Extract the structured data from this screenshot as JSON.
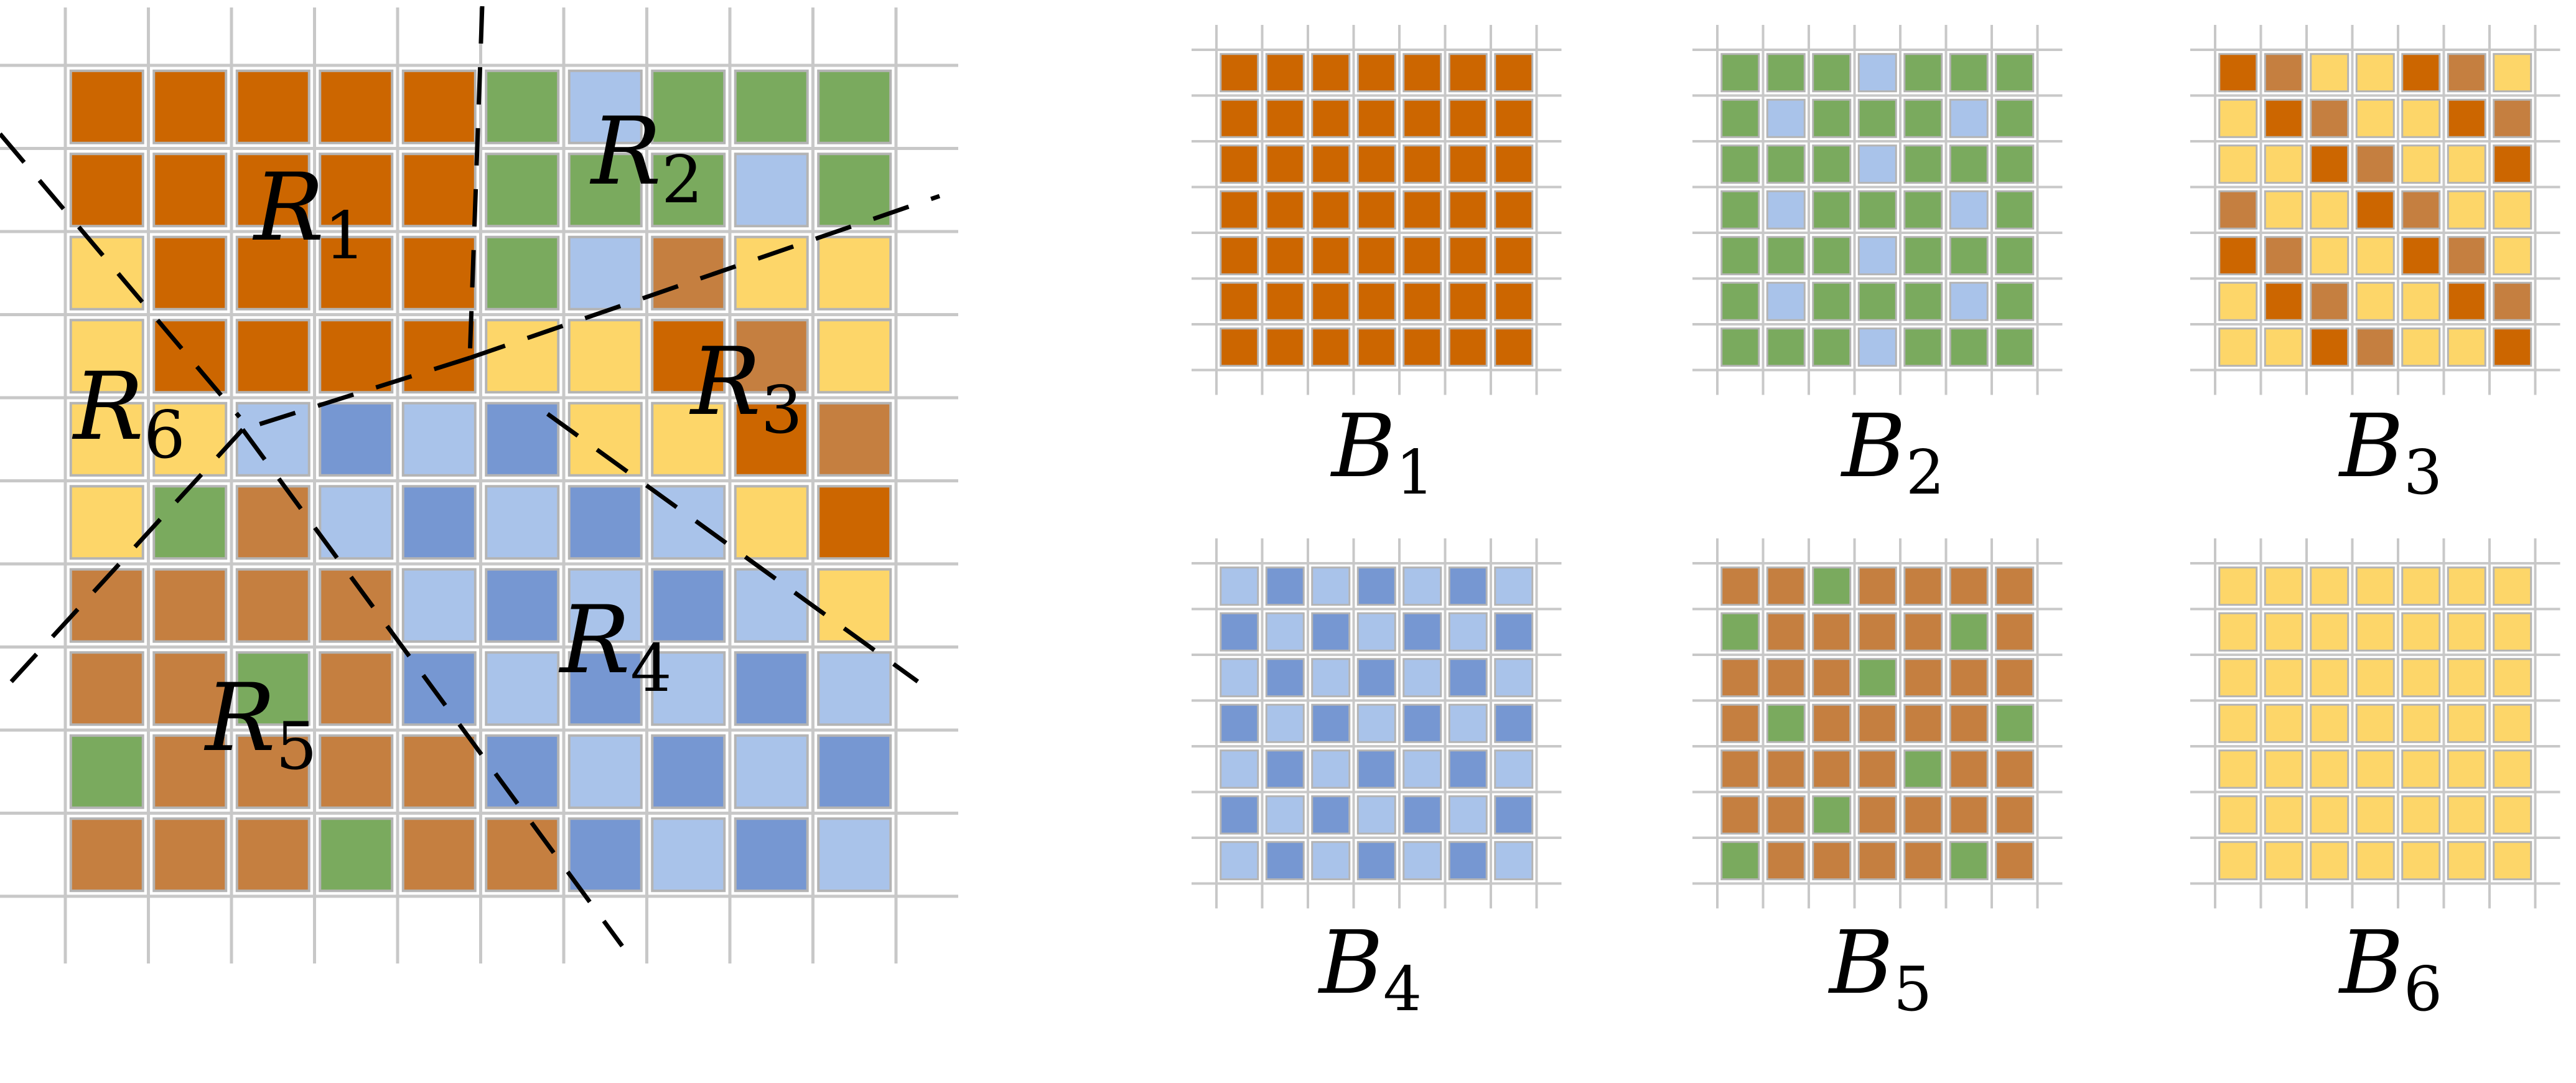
{
  "colors": {
    "O": "#cc6600",
    "G": "#7aaa5e",
    "L": "#a9c3ea",
    "D": "#7697d2",
    "Y": "#fdd669",
    "T": "#c57f40",
    "grid": "#c8c8c8",
    "cell_border": "#b4b4b4",
    "boundary": "#000000"
  },
  "main_grid": {
    "rows": [
      "OOOOOGLGGG",
      "OOOOOGGGLG",
      "YOOOOGLTYY",
      "YOOOOYYOTY",
      "YYLDLDYYOT",
      "YGTLDLDLYO",
      "TTTTLDLDLY",
      "TTGTDLDLDL",
      "GTTTTDLDLD",
      "TTTGTTDLDL"
    ],
    "region_labels": [
      {
        "base": "R",
        "sub": "1"
      },
      {
        "base": "R",
        "sub": "2"
      },
      {
        "base": "R",
        "sub": "3"
      },
      {
        "base": "R",
        "sub": "4"
      },
      {
        "base": "R",
        "sub": "5"
      },
      {
        "base": "R",
        "sub": "6"
      }
    ]
  },
  "blocks": [
    {
      "label": {
        "base": "B",
        "sub": "1"
      },
      "rows": [
        "OOOOOOO",
        "OOOOOOO",
        "OOOOOOO",
        "OOOOOOO",
        "OOOOOOO",
        "OOOOOOO",
        "OOOOOOO"
      ]
    },
    {
      "label": {
        "base": "B",
        "sub": "2"
      },
      "rows": [
        "GGGLGGG",
        "GLGGGLG",
        "GGGLGGG",
        "GLGGGLG",
        "GGGLGGG",
        "GLGGGLG",
        "GGGLGGG"
      ]
    },
    {
      "label": {
        "base": "B",
        "sub": "3"
      },
      "rows": [
        "OTYYOTY",
        "YOTYYOT",
        "YYOTYYO",
        "TYYOTYY",
        "OTYYOTY",
        "YOTYYOT",
        "YYOTYYO"
      ]
    },
    {
      "label": {
        "base": "B",
        "sub": "4"
      },
      "rows": [
        "LDLDLDL",
        "DLDLDLD",
        "LDLDLDL",
        "DLDLDLD",
        "LDLDLDL",
        "DLDLDLD",
        "LDLDLDL"
      ]
    },
    {
      "label": {
        "base": "B",
        "sub": "5"
      },
      "rows": [
        "TTGTTTT",
        "GTTTTGT",
        "TTTGTTT",
        "TGTTTTG",
        "TTTTGTT",
        "TTGTTTT",
        "GTTTTGT"
      ]
    },
    {
      "label": {
        "base": "B",
        "sub": "6"
      },
      "rows": [
        "YYYYYYY",
        "YYYYYYY",
        "YYYYYYY",
        "YYYYYYY",
        "YYYYYYY",
        "YYYYYYY",
        "YYYYYYY"
      ]
    }
  ]
}
